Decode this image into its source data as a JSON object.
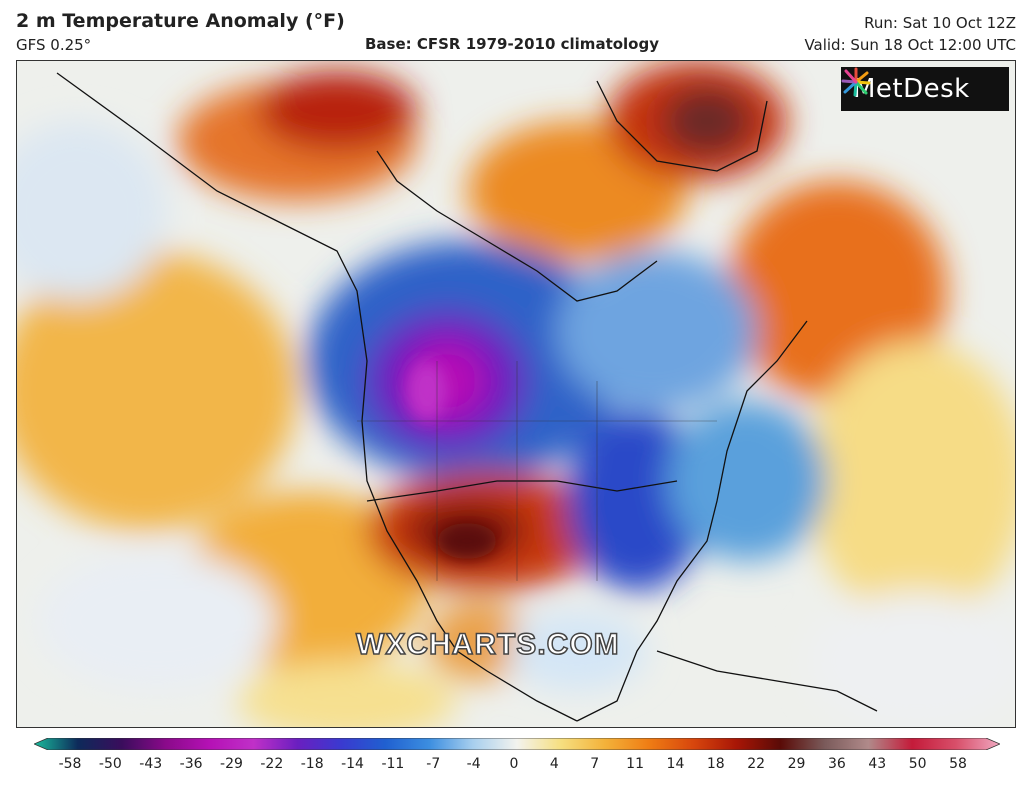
{
  "header": {
    "title": "2 m Temperature Anomaly (°F)",
    "model": "GFS 0.25°",
    "base": "Base: CFSR 1979-2010 climatology",
    "run": "Run: Sat 10 Oct 12Z",
    "valid": "Valid: Sun 18 Oct 12:00 UTC"
  },
  "logo": {
    "text": "MetDesk"
  },
  "watermark": "WXCHARTS.COM",
  "colorbar": {
    "ticks": [
      "-58",
      "-50",
      "-43",
      "-36",
      "-29",
      "-22",
      "-18",
      "-14",
      "-11",
      "-7",
      "-4",
      "0",
      "4",
      "7",
      "11",
      "14",
      "18",
      "22",
      "29",
      "36",
      "43",
      "50",
      "58"
    ],
    "colors": [
      "#1abc9c",
      "#0d2a5a",
      "#3a0d5c",
      "#8a0a8a",
      "#b511b5",
      "#c030c8",
      "#6a1fc0",
      "#3a3ad0",
      "#2060d0",
      "#3c8ee0",
      "#a8cfee",
      "#f3f3ee",
      "#f6df80",
      "#f3b23a",
      "#ef7d14",
      "#d8470d",
      "#a81606",
      "#5a0b07",
      "#7a5a5a",
      "#b08a8a",
      "#c41b3a",
      "#d84f6a",
      "#f0a8c0"
    ]
  }
}
